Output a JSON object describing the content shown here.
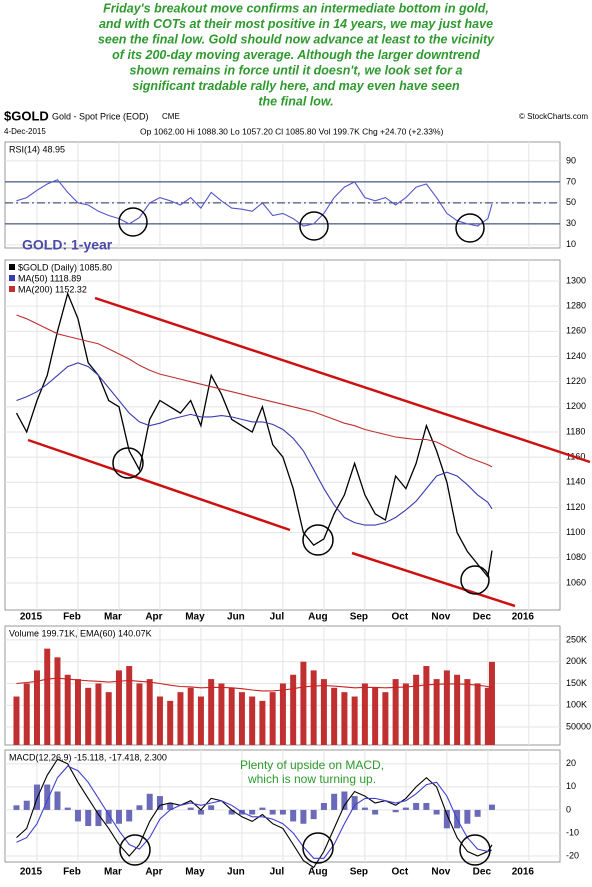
{
  "commentary": [
    "Friday's breakout move confirms an intermediate bottom in gold,",
    "and with COTs at their most positive in 14 years, we may just have",
    "seen the final low. Gold should now advance at least to the vicinity",
    "of its 200-day moving average. Although the larger downtrend",
    "shown remains in force until it doesn't, we look set for a",
    "significant tradable rally here, and may even have seen",
    "the final low."
  ],
  "header": {
    "symbol": "$GOLD",
    "name": "Gold - Spot Price (EOD)",
    "exchange": "CME",
    "credit": "© StockCharts.com",
    "date": "4-Dec-2015",
    "quote": "Op 1062.00  Hi 1088.30  Lo 1057.20  Cl 1085.80  Vol 199.7K  Chg +24.70 (+2.33%)"
  },
  "chart_data": [
    {
      "type": "line",
      "legend_text": "RSI(14) 48.95",
      "annotation": "GOLD: 1-year",
      "ylim": [
        7,
        108
      ],
      "yticks": [
        10,
        30,
        50,
        70,
        90
      ],
      "ref_lines": [
        70,
        50,
        30
      ],
      "series": [
        {
          "color": "#5555cc",
          "values": [
            52,
            55,
            62,
            68,
            72,
            60,
            50,
            48,
            42,
            38,
            35,
            30,
            36,
            50,
            55,
            52,
            48,
            55,
            45,
            60,
            52,
            45,
            44,
            42,
            50,
            38,
            40,
            35,
            28,
            30,
            40,
            55,
            65,
            70,
            55,
            52,
            55,
            48,
            55,
            65,
            68,
            55,
            40,
            33,
            30,
            28,
            35,
            48.95
          ]
        }
      ]
    },
    {
      "type": "line",
      "xlim": [
        -0.78,
        12.76
      ],
      "xticks": [
        {
          "value": 0,
          "label": "2015"
        },
        {
          "value": 1,
          "label": "Feb"
        },
        {
          "value": 2,
          "label": "Mar"
        },
        {
          "value": 3,
          "label": "Apr"
        },
        {
          "value": 4,
          "label": "May"
        },
        {
          "value": 5,
          "label": "Jun"
        },
        {
          "value": 6,
          "label": "Jul"
        },
        {
          "value": 7,
          "label": "Aug"
        },
        {
          "value": 8,
          "label": "Sep"
        },
        {
          "value": 9,
          "label": "Oct"
        },
        {
          "value": 10,
          "label": "Nov"
        },
        {
          "value": 11,
          "label": "Dec"
        },
        {
          "value": 12,
          "label": "2016"
        }
      ],
      "x": [
        -0.5,
        -0.25,
        0,
        0.25,
        0.5,
        0.75,
        1,
        1.25,
        1.5,
        1.75,
        2,
        2.25,
        2.5,
        2.75,
        3,
        3.25,
        3.5,
        3.75,
        4,
        4.25,
        4.5,
        4.75,
        5,
        5.25,
        5.5,
        5.75,
        6,
        6.25,
        6.5,
        6.75,
        7,
        7.25,
        7.5,
        7.75,
        8,
        8.25,
        8.5,
        8.75,
        9,
        9.25,
        9.5,
        9.75,
        10,
        10.25,
        10.5,
        10.75,
        11,
        11.1
      ],
      "ylim": [
        1038.5,
        1316.7
      ],
      "yticks": [
        1060,
        1080,
        1100,
        1120,
        1140,
        1160,
        1180,
        1200,
        1220,
        1240,
        1260,
        1280,
        1300
      ],
      "grid": true,
      "series": [
        {
          "name": "$GOLD (Daily) 1085.80",
          "color": "#000000",
          "values": [
            1195,
            1180,
            1205,
            1225,
            1260,
            1290,
            1270,
            1235,
            1225,
            1205,
            1200,
            1165,
            1150,
            1190,
            1205,
            1200,
            1195,
            1205,
            1185,
            1225,
            1210,
            1190,
            1185,
            1180,
            1200,
            1170,
            1160,
            1135,
            1100,
            1090,
            1095,
            1115,
            1130,
            1155,
            1130,
            1115,
            1110,
            1145,
            1135,
            1155,
            1185,
            1165,
            1140,
            1100,
            1085,
            1075,
            1065,
            1085.8
          ]
        },
        {
          "name": "MA(50) 1118.89",
          "color": "#3b3bb0",
          "values": [
            1205,
            1208,
            1212,
            1218,
            1225,
            1232,
            1235,
            1232,
            1225,
            1215,
            1205,
            1195,
            1188,
            1185,
            1187,
            1190,
            1192,
            1194,
            1192,
            1192,
            1193,
            1192,
            1190,
            1188,
            1188,
            1186,
            1182,
            1175,
            1165,
            1150,
            1135,
            1122,
            1112,
            1108,
            1106,
            1106,
            1108,
            1112,
            1118,
            1125,
            1135,
            1145,
            1148,
            1145,
            1138,
            1130,
            1124,
            1118.89
          ]
        },
        {
          "name": "MA(200) 1152.32",
          "color": "#c03030",
          "values": [
            1273,
            1270,
            1266,
            1262,
            1258,
            1256,
            1254,
            1252,
            1250,
            1246,
            1242,
            1238,
            1233,
            1229,
            1226,
            1224,
            1222,
            1220,
            1218,
            1216,
            1214,
            1212,
            1210,
            1208,
            1206,
            1204,
            1202,
            1200,
            1198,
            1196,
            1193,
            1190,
            1187,
            1185,
            1182,
            1180,
            1178,
            1176,
            1175,
            1174,
            1174,
            1172,
            1168,
            1164,
            1160,
            1157,
            1154,
            1152.32
          ]
        }
      ]
    },
    {
      "type": "bar",
      "legend_text": "Volume 199.71K, EMA(60) 140.07K",
      "ylim": [
        8600,
        282000
      ],
      "yticks": [
        50000,
        {
          "value": 100000,
          "label": "100K"
        },
        {
          "value": 150000,
          "label": "150K"
        },
        {
          "value": 200000,
          "label": "200K"
        },
        {
          "value": 250000,
          "label": "250K"
        }
      ],
      "series": [
        {
          "type": "bar",
          "color": "#c03030",
          "values": [
            120000,
            150000,
            180000,
            230000,
            210000,
            170000,
            160000,
            140000,
            150000,
            130000,
            180000,
            190000,
            150000,
            160000,
            120000,
            110000,
            130000,
            140000,
            120000,
            160000,
            150000,
            140000,
            130000,
            120000,
            110000,
            130000,
            150000,
            170000,
            200000,
            180000,
            160000,
            140000,
            130000,
            120000,
            150000,
            140000,
            130000,
            160000,
            150000,
            170000,
            190000,
            160000,
            180000,
            170000,
            160000,
            150000,
            140000,
            199710
          ]
        },
        {
          "type": "line",
          "color": "#cc2222",
          "values": [
            150000,
            152000,
            155000,
            160000,
            162000,
            160000,
            158000,
            156000,
            155000,
            153000,
            155000,
            157000,
            155000,
            153000,
            150000,
            146000,
            143000,
            142000,
            140000,
            141000,
            141000,
            140000,
            138000,
            135000,
            133000,
            133000,
            135000,
            138000,
            142000,
            144000,
            145000,
            144000,
            142000,
            140000,
            141000,
            141000,
            140000,
            141000,
            142000,
            144000,
            147000,
            148000,
            149000,
            149000,
            148000,
            146000,
            143000,
            140070
          ]
        }
      ]
    },
    {
      "type": "line",
      "legend_text": "MACD(12,26,9) -15.118, -17.418, 2.300",
      "annotation": [
        "Plenty of upside on MACD,",
        "which is now turning up."
      ],
      "ylim": [
        -22.6,
        26
      ],
      "yticks": [
        -20,
        -10,
        0,
        10,
        20
      ],
      "series": [
        {
          "type": "bar",
          "color": "#6a6ab8",
          "values": [
            2,
            4,
            11,
            11,
            8,
            1,
            -5,
            -7,
            -7,
            -6,
            -6,
            -5,
            2,
            7,
            6,
            3,
            0,
            1,
            -2,
            2,
            0,
            -2,
            -2,
            -2,
            1,
            -2,
            -2,
            -5,
            -6,
            -4,
            3,
            7,
            8,
            6,
            1,
            -2,
            0,
            -1,
            1,
            3,
            3,
            -2,
            -8,
            -8,
            -6,
            -3,
            0,
            2.3
          ]
        },
        {
          "type": "line",
          "color": "#000000",
          "values": [
            -12,
            -8,
            5,
            15,
            22,
            20,
            12,
            5,
            -2,
            -8,
            -15,
            -20,
            -15,
            -5,
            2,
            3,
            2,
            4,
            0,
            5,
            4,
            0,
            -3,
            -5,
            -2,
            -6,
            -8,
            -15,
            -22,
            -25,
            -18,
            -8,
            2,
            8,
            6,
            3,
            4,
            2,
            5,
            10,
            14,
            10,
            -2,
            -12,
            -18,
            -20,
            -18,
            -15.118
          ]
        },
        {
          "type": "line",
          "color": "#4040d0",
          "values": [
            -14,
            -12,
            -6,
            4,
            14,
            19,
            17,
            12,
            5,
            -2,
            -9,
            -15,
            -17,
            -12,
            -4,
            0,
            2,
            3,
            2,
            3,
            4,
            2,
            -1,
            -3,
            -3,
            -4,
            -6,
            -10,
            -16,
            -21,
            -21,
            -15,
            -6,
            2,
            5,
            5,
            4,
            3,
            4,
            7,
            11,
            12,
            6,
            -4,
            -12,
            -17,
            -18,
            -17.418
          ]
        }
      ]
    }
  ]
}
